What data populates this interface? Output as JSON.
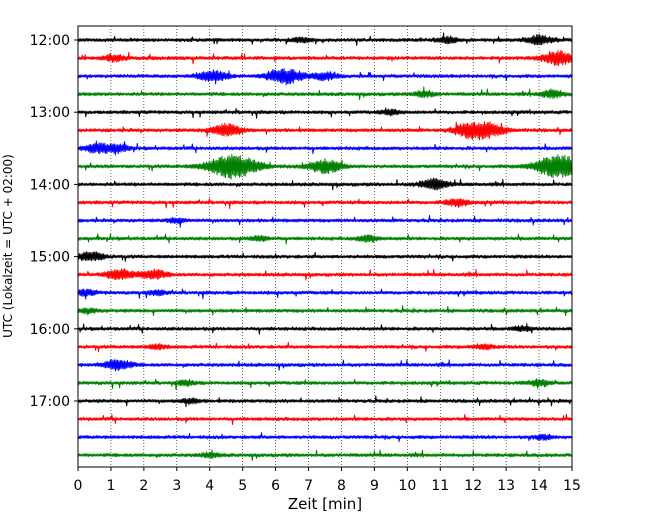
{
  "chart_data": {
    "type": "line",
    "title": "",
    "xlabel": "Zeit  [min]",
    "ylabel": "UTC (Lokalzeit = UTC + 02:00)",
    "xlim": [
      0,
      15
    ],
    "x_ticks": [
      "0",
      "1",
      "2",
      "3",
      "4",
      "5",
      "6",
      "7",
      "8",
      "9",
      "10",
      "11",
      "12",
      "13",
      "14",
      "15"
    ],
    "y_tick_labels": [
      "12:00",
      "13:00",
      "14:00",
      "15:00",
      "16:00",
      "17:00"
    ],
    "trace_colors": [
      "#000000",
      "#ff0000",
      "#0000ff",
      "#008000"
    ],
    "traces": [
      {
        "start": "12:00",
        "color": "#000000",
        "bursts": [
          [
            6.8,
            0.3
          ],
          [
            11.2,
            0.4
          ],
          [
            14.0,
            0.6
          ]
        ]
      },
      {
        "start": "12:15",
        "color": "#ff0000",
        "bursts": [
          [
            1.1,
            0.4
          ],
          [
            14.6,
            0.9
          ]
        ]
      },
      {
        "start": "12:30",
        "color": "#0000ff",
        "bursts": [
          [
            4.1,
            0.7
          ],
          [
            6.3,
            1.0
          ],
          [
            7.5,
            0.5
          ]
        ]
      },
      {
        "start": "12:45",
        "color": "#008000",
        "bursts": [
          [
            10.5,
            0.4
          ],
          [
            14.4,
            0.5
          ]
        ]
      },
      {
        "start": "13:00",
        "color": "#000000",
        "bursts": [
          [
            9.5,
            0.3
          ]
        ]
      },
      {
        "start": "13:15",
        "color": "#ff0000",
        "bursts": [
          [
            4.5,
            0.8
          ],
          [
            11.8,
            0.7
          ],
          [
            12.4,
            1.0
          ]
        ]
      },
      {
        "start": "13:30",
        "color": "#0000ff",
        "bursts": [
          [
            0.6,
            0.6
          ],
          [
            1.2,
            0.5
          ]
        ]
      },
      {
        "start": "13:45",
        "color": "#008000",
        "bursts": [
          [
            4.7,
            1.6
          ],
          [
            7.5,
            0.9
          ],
          [
            14.6,
            1.5
          ]
        ]
      },
      {
        "start": "14:00",
        "color": "#000000",
        "bursts": [
          [
            10.8,
            0.7
          ]
        ]
      },
      {
        "start": "14:15",
        "color": "#ff0000",
        "bursts": [
          [
            11.5,
            0.5
          ]
        ]
      },
      {
        "start": "14:30",
        "color": "#0000ff",
        "bursts": [
          [
            3.0,
            0.3
          ]
        ]
      },
      {
        "start": "14:45",
        "color": "#008000",
        "bursts": [
          [
            5.5,
            0.3
          ],
          [
            8.8,
            0.4
          ]
        ]
      },
      {
        "start": "15:00",
        "color": "#000000",
        "bursts": [
          [
            0.4,
            0.6
          ]
        ]
      },
      {
        "start": "15:15",
        "color": "#ff0000",
        "bursts": [
          [
            1.3,
            0.7
          ],
          [
            2.3,
            0.6
          ]
        ]
      },
      {
        "start": "15:30",
        "color": "#0000ff",
        "bursts": [
          [
            0.2,
            0.4
          ],
          [
            2.4,
            0.3
          ]
        ]
      },
      {
        "start": "15:45",
        "color": "#008000",
        "bursts": [
          [
            0.3,
            0.3
          ]
        ]
      },
      {
        "start": "16:00",
        "color": "#000000",
        "bursts": [
          [
            13.5,
            0.3
          ]
        ]
      },
      {
        "start": "16:15",
        "color": "#ff0000",
        "bursts": [
          [
            2.4,
            0.3
          ],
          [
            12.3,
            0.3
          ]
        ]
      },
      {
        "start": "16:30",
        "color": "#0000ff",
        "bursts": [
          [
            1.2,
            0.7
          ]
        ]
      },
      {
        "start": "16:45",
        "color": "#008000",
        "bursts": [
          [
            3.3,
            0.3
          ],
          [
            14.0,
            0.4
          ]
        ]
      },
      {
        "start": "17:00",
        "color": "#000000",
        "bursts": [
          [
            3.4,
            0.3
          ]
        ]
      },
      {
        "start": "17:15",
        "color": "#ff0000",
        "bursts": []
      },
      {
        "start": "17:30",
        "color": "#0000ff",
        "bursts": [
          [
            14.1,
            0.3
          ]
        ]
      },
      {
        "start": "17:45",
        "color": "#008000",
        "bursts": [
          [
            4.0,
            0.3
          ]
        ]
      }
    ]
  }
}
